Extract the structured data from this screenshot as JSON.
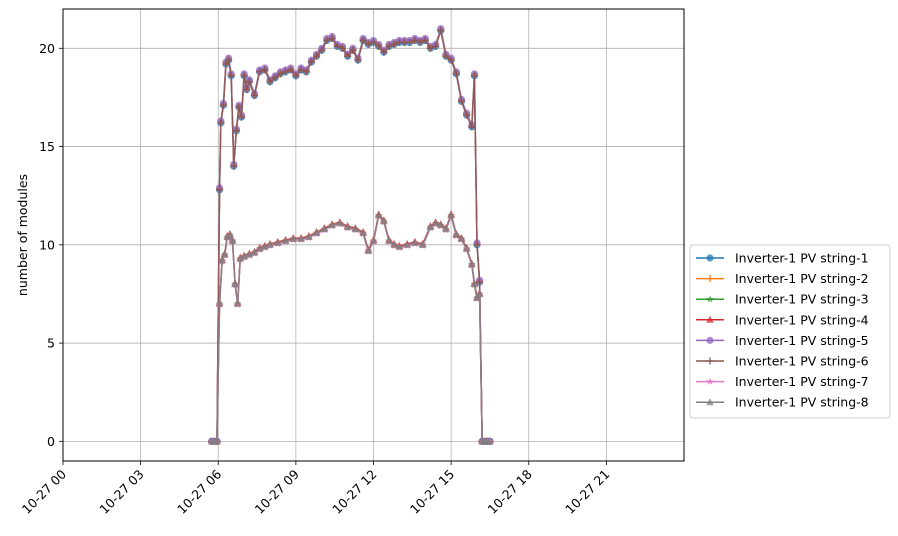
{
  "chart_data": {
    "type": "line",
    "title": "",
    "xlabel": "",
    "ylabel": "number of modules",
    "x_tick_labels": [
      "10-27 00",
      "10-27 03",
      "10-27 06",
      "10-27 09",
      "10-27 12",
      "10-27 15",
      "10-27 18",
      "10-27 21"
    ],
    "x_ticks_hours": [
      0,
      3,
      6,
      9,
      12,
      15,
      18,
      21
    ],
    "xlim_hours": [
      0,
      24
    ],
    "y_ticks": [
      0,
      5,
      10,
      15,
      20
    ],
    "ylim": [
      -1,
      22
    ],
    "grid": true,
    "legend_position": "outside-right-lower",
    "colors": [
      "#1f77b4",
      "#ff7f0e",
      "#2ca02c",
      "#d62728",
      "#9467bd",
      "#8c564b",
      "#e377c2",
      "#7f7f7f"
    ],
    "markers": [
      "circle",
      "plus",
      "star",
      "triangle",
      "circle",
      "plus",
      "star",
      "triangle"
    ],
    "series": [
      {
        "name": "Inverter-1 PV string-1",
        "group": "high"
      },
      {
        "name": "Inverter-1 PV string-2",
        "group": "high"
      },
      {
        "name": "Inverter-1 PV string-3",
        "group": "low"
      },
      {
        "name": "Inverter-1 PV string-4",
        "group": "low"
      },
      {
        "name": "Inverter-1 PV string-5",
        "group": "high"
      },
      {
        "name": "Inverter-1 PV string-6",
        "group": "high"
      },
      {
        "name": "Inverter-1 PV string-7",
        "group": "low"
      },
      {
        "name": "Inverter-1 PV string-8",
        "group": "low"
      }
    ],
    "profiles": {
      "high": {
        "x": [
          5.75,
          5.85,
          5.95,
          6.05,
          6.1,
          6.2,
          6.3,
          6.4,
          6.5,
          6.6,
          6.7,
          6.8,
          6.9,
          7.0,
          7.1,
          7.2,
          7.4,
          7.6,
          7.8,
          8.0,
          8.2,
          8.4,
          8.6,
          8.8,
          9.0,
          9.2,
          9.4,
          9.6,
          9.8,
          10.0,
          10.2,
          10.4,
          10.6,
          10.8,
          11.0,
          11.2,
          11.4,
          11.6,
          11.8,
          12.0,
          12.2,
          12.4,
          12.6,
          12.8,
          13.0,
          13.2,
          13.4,
          13.6,
          13.8,
          14.0,
          14.2,
          14.4,
          14.6,
          14.8,
          15.0,
          15.2,
          15.4,
          15.6,
          15.8,
          15.9,
          16.0,
          16.1,
          16.2,
          16.3,
          16.4,
          16.5
        ],
        "y": [
          0,
          0,
          0,
          12.8,
          16.2,
          17.1,
          19.2,
          19.4,
          18.6,
          14.0,
          15.8,
          17.0,
          16.5,
          18.6,
          17.9,
          18.3,
          17.6,
          18.8,
          18.9,
          18.3,
          18.5,
          18.7,
          18.8,
          18.9,
          18.6,
          18.9,
          18.8,
          19.3,
          19.6,
          19.9,
          20.4,
          20.5,
          20.1,
          20.0,
          19.6,
          19.9,
          19.4,
          20.4,
          20.2,
          20.3,
          20.1,
          19.8,
          20.1,
          20.2,
          20.3,
          20.3,
          20.3,
          20.4,
          20.3,
          20.4,
          20.0,
          20.1,
          20.9,
          19.6,
          19.4,
          18.7,
          17.3,
          16.6,
          16.0,
          18.6,
          10.0,
          8.1,
          0,
          0,
          0,
          0
        ]
      },
      "low": {
        "x": [
          5.75,
          5.85,
          5.95,
          6.05,
          6.15,
          6.25,
          6.35,
          6.45,
          6.55,
          6.65,
          6.75,
          6.85,
          7.0,
          7.2,
          7.4,
          7.6,
          7.8,
          8.0,
          8.3,
          8.6,
          8.9,
          9.2,
          9.5,
          9.8,
          10.1,
          10.4,
          10.7,
          11.0,
          11.3,
          11.6,
          11.8,
          12.0,
          12.2,
          12.4,
          12.6,
          12.8,
          13.0,
          13.3,
          13.6,
          13.9,
          14.2,
          14.4,
          14.6,
          14.8,
          15.0,
          15.2,
          15.4,
          15.6,
          15.8,
          15.9,
          16.0,
          16.1,
          16.2,
          16.3,
          16.4,
          16.5
        ],
        "y": [
          0,
          0,
          0,
          7.0,
          9.2,
          9.5,
          10.4,
          10.5,
          10.2,
          8.0,
          7.0,
          9.3,
          9.4,
          9.5,
          9.6,
          9.8,
          9.9,
          10.0,
          10.1,
          10.2,
          10.3,
          10.3,
          10.4,
          10.6,
          10.8,
          11.0,
          11.1,
          10.9,
          10.8,
          10.6,
          9.7,
          10.2,
          11.5,
          11.2,
          10.2,
          10.0,
          9.9,
          10.0,
          10.1,
          10.0,
          10.9,
          11.1,
          11.0,
          10.8,
          11.5,
          10.5,
          10.3,
          9.8,
          9.0,
          8.0,
          7.3,
          7.5,
          0,
          0,
          0,
          0
        ]
      }
    },
    "series_offsets": [
      0,
      0.05,
      0,
      0.05,
      0.1,
      0,
      -0.05,
      0
    ]
  }
}
